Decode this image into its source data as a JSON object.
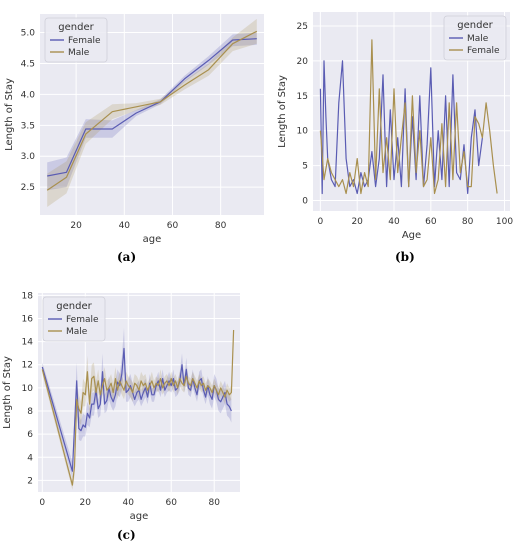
{
  "colors": {
    "background": "#eaeaf2",
    "grid": "#ffffff",
    "female": "#5a5cb3",
    "male": "#a9904f",
    "text": "#333333"
  },
  "chart_data": [
    {
      "panel": "(a)",
      "type": "line",
      "xlabel": "age",
      "ylabel": "Length of Stay",
      "xlim": [
        5,
        98
      ],
      "ylim": [
        2.05,
        5.3
      ],
      "xticks": [
        20,
        40,
        60,
        80
      ],
      "yticks": [
        2.5,
        3.0,
        3.5,
        4.0,
        4.5,
        5.0
      ],
      "grid": true,
      "legend": {
        "title": "gender",
        "placement": "top-left"
      },
      "series": [
        {
          "name": "Female",
          "color": "#5a5cb3",
          "x": [
            8,
            16,
            24,
            35,
            45,
            55,
            65,
            75,
            85,
            95
          ],
          "y": [
            2.68,
            2.74,
            3.44,
            3.44,
            3.7,
            3.88,
            4.25,
            4.55,
            4.88,
            4.9
          ],
          "ci_low": [
            2.45,
            2.5,
            3.3,
            3.3,
            3.65,
            3.84,
            4.2,
            4.48,
            4.78,
            4.8
          ],
          "ci_high": [
            2.9,
            2.98,
            3.6,
            3.58,
            3.75,
            3.92,
            4.3,
            4.62,
            4.97,
            5.0
          ]
        },
        {
          "name": "Male",
          "color": "#a9904f",
          "x": [
            8,
            16,
            24,
            35,
            45,
            55,
            65,
            75,
            85,
            95
          ],
          "y": [
            2.45,
            2.66,
            3.36,
            3.72,
            3.8,
            3.88,
            4.15,
            4.4,
            4.82,
            5.02
          ],
          "ci_low": [
            2.18,
            2.4,
            3.2,
            3.6,
            3.74,
            3.83,
            4.08,
            4.3,
            4.7,
            4.82
          ],
          "ci_high": [
            2.72,
            2.92,
            3.55,
            3.84,
            3.86,
            3.93,
            4.22,
            4.5,
            4.92,
            5.22
          ]
        }
      ]
    },
    {
      "panel": "(b)",
      "type": "line",
      "xlabel": "Age",
      "ylabel": "Length of Stay",
      "xlim": [
        -4,
        103
      ],
      "ylim": [
        -1.5,
        27
      ],
      "xticks": [
        0,
        20,
        40,
        60,
        80,
        100
      ],
      "yticks": [
        0,
        5,
        10,
        15,
        20,
        25
      ],
      "grid": true,
      "legend": {
        "title": "gender",
        "placement": "top-right"
      },
      "series": [
        {
          "name": "Male",
          "color": "#5a5cb3",
          "x": [
            0,
            1,
            2,
            3,
            4,
            6,
            8,
            10,
            12,
            14,
            16,
            18,
            20,
            22,
            24,
            26,
            28,
            30,
            32,
            34,
            36,
            38,
            40,
            42,
            44,
            46,
            48,
            50,
            52,
            54,
            56,
            58,
            60,
            62,
            64,
            66,
            68,
            70,
            72,
            74,
            76,
            78,
            80,
            82,
            84,
            86,
            88
          ],
          "y": [
            16,
            1,
            20,
            12,
            6,
            3,
            2,
            14,
            20,
            6,
            2,
            3,
            1,
            4,
            2,
            3,
            7,
            2,
            6,
            18,
            2,
            13,
            3,
            9,
            2,
            16,
            2,
            12,
            3,
            15,
            2,
            8,
            19,
            2,
            10,
            3,
            15,
            2,
            18,
            4,
            3,
            8,
            1,
            9,
            13,
            5,
            9
          ]
        },
        {
          "name": "Female",
          "color": "#a9904f",
          "x": [
            0,
            2,
            4,
            6,
            8,
            10,
            12,
            14,
            16,
            18,
            20,
            22,
            24,
            26,
            28,
            30,
            32,
            34,
            36,
            38,
            40,
            42,
            44,
            46,
            48,
            50,
            52,
            54,
            56,
            58,
            60,
            62,
            64,
            66,
            68,
            70,
            72,
            74,
            76,
            78,
            80,
            82,
            84,
            86,
            88,
            90,
            92,
            94,
            96
          ],
          "y": [
            10,
            3,
            6,
            4,
            3,
            2,
            3,
            1,
            4,
            2,
            6,
            1,
            4,
            2,
            23,
            3,
            16,
            4,
            9,
            3,
            16,
            4,
            9,
            14,
            2,
            15,
            4,
            10,
            2,
            3,
            9,
            1,
            3,
            11,
            2,
            14,
            3,
            14,
            4,
            7,
            2,
            2,
            12,
            11,
            9,
            14,
            10,
            5,
            1
          ]
        }
      ]
    },
    {
      "panel": "(c)",
      "type": "line",
      "xlabel": "age",
      "ylabel": "Length of Stay",
      "xlim": [
        -2,
        92
      ],
      "ylim": [
        1,
        18.2
      ],
      "xticks": [
        0,
        20,
        40,
        60,
        80
      ],
      "yticks": [
        2,
        4,
        6,
        8,
        10,
        12,
        14,
        16,
        18
      ],
      "grid": true,
      "legend": {
        "title": "gender",
        "placement": "top-left"
      },
      "series": [
        {
          "name": "Female",
          "color": "#5a5cb3",
          "x": [
            0,
            14,
            16,
            17,
            18,
            19,
            20,
            21,
            22,
            23,
            24,
            25,
            26,
            27,
            28,
            29,
            30,
            31,
            32,
            33,
            34,
            35,
            36,
            37,
            38,
            39,
            40,
            41,
            42,
            43,
            44,
            45,
            46,
            47,
            48,
            49,
            50,
            51,
            52,
            53,
            54,
            55,
            56,
            57,
            58,
            59,
            60,
            61,
            62,
            63,
            64,
            65,
            66,
            67,
            68,
            69,
            70,
            71,
            72,
            73,
            74,
            75,
            76,
            77,
            78,
            79,
            80,
            81,
            82,
            83,
            84,
            85,
            86,
            87,
            88
          ],
          "y": [
            11.8,
            2.8,
            10.6,
            6.5,
            6.3,
            6.8,
            6.6,
            7.8,
            7.4,
            8.6,
            8.6,
            9.8,
            8.2,
            8.6,
            11.4,
            8.6,
            8.9,
            10.0,
            9.2,
            8.8,
            9.4,
            10.5,
            10.2,
            11.2,
            13.4,
            9.6,
            9.8,
            10.2,
            9.6,
            9.0,
            9.6,
            9.8,
            9.0,
            9.6,
            10.0,
            9.2,
            10.4,
            9.4,
            9.4,
            10.2,
            10.6,
            9.8,
            10.8,
            9.8,
            10.2,
            10.6,
            10.2,
            10.8,
            9.8,
            10.0,
            10.6,
            12.0,
            10.2,
            11.6,
            10.0,
            9.8,
            10.8,
            10.0,
            9.4,
            10.6,
            10.8,
            9.8,
            9.2,
            10.2,
            9.4,
            9.0,
            10.2,
            9.8,
            9.0,
            8.8,
            9.2,
            9.6,
            8.6,
            8.4,
            8.0
          ],
          "ci_low": [
            11.4,
            2.2,
            9.2,
            5.5,
            5.4,
            5.8,
            5.8,
            6.8,
            6.6,
            7.6,
            7.6,
            8.8,
            7.4,
            7.6,
            9.8,
            7.8,
            8.0,
            9.0,
            8.4,
            8.0,
            8.4,
            9.4,
            9.2,
            9.8,
            11.4,
            8.8,
            8.8,
            9.2,
            8.8,
            8.4,
            8.8,
            9.0,
            8.4,
            8.8,
            9.2,
            8.6,
            9.6,
            8.8,
            8.8,
            9.6,
            9.8,
            9.2,
            10.0,
            9.2,
            9.6,
            9.8,
            9.6,
            10.0,
            9.2,
            9.4,
            9.8,
            11.0,
            9.6,
            10.6,
            9.4,
            9.2,
            10.0,
            9.4,
            8.8,
            9.8,
            10.0,
            9.2,
            8.6,
            9.4,
            8.6,
            8.2,
            9.2,
            8.8,
            8.0,
            7.8,
            8.2,
            8.6,
            7.6,
            7.4,
            7.0
          ],
          "ci_high": [
            12.2,
            3.6,
            12.2,
            7.6,
            7.2,
            7.8,
            7.6,
            8.8,
            8.2,
            9.6,
            9.6,
            10.8,
            9.0,
            9.6,
            13.0,
            9.4,
            9.8,
            11.0,
            10.0,
            9.6,
            10.4,
            11.6,
            11.2,
            12.6,
            15.2,
            10.4,
            10.8,
            11.2,
            10.4,
            9.6,
            10.4,
            10.6,
            9.6,
            10.4,
            10.8,
            9.8,
            11.2,
            10.0,
            10.0,
            10.8,
            11.4,
            10.4,
            11.6,
            10.4,
            10.8,
            11.4,
            10.8,
            11.6,
            10.4,
            10.6,
            11.4,
            13.0,
            10.8,
            12.6,
            10.6,
            10.4,
            11.6,
            10.6,
            10.0,
            11.4,
            11.6,
            10.4,
            9.8,
            11.0,
            10.2,
            9.8,
            11.2,
            10.8,
            10.0,
            9.8,
            10.2,
            10.6,
            9.6,
            9.4,
            9.0
          ]
        },
        {
          "name": "Male",
          "color": "#a9904f",
          "x": [
            0,
            14,
            15,
            16,
            17,
            18,
            19,
            20,
            21,
            22,
            23,
            24,
            25,
            26,
            27,
            28,
            29,
            30,
            31,
            32,
            33,
            34,
            35,
            36,
            37,
            38,
            39,
            40,
            41,
            42,
            43,
            44,
            45,
            46,
            47,
            48,
            49,
            50,
            51,
            52,
            53,
            54,
            55,
            56,
            57,
            58,
            59,
            60,
            61,
            62,
            63,
            64,
            65,
            66,
            67,
            68,
            69,
            70,
            71,
            72,
            73,
            74,
            75,
            76,
            77,
            78,
            79,
            80,
            81,
            82,
            83,
            84,
            85,
            86,
            87,
            88,
            89
          ],
          "y": [
            11.6,
            1.6,
            3.2,
            9.0,
            8.2,
            7.8,
            9.6,
            9.4,
            11.4,
            8.6,
            10.8,
            11.0,
            9.6,
            10.6,
            9.4,
            10.2,
            10.8,
            9.8,
            10.0,
            10.4,
            9.6,
            10.8,
            9.8,
            10.6,
            10.2,
            9.8,
            10.6,
            10.2,
            10.0,
            9.6,
            10.4,
            10.2,
            9.8,
            10.6,
            10.2,
            10.4,
            9.8,
            10.2,
            10.6,
            10.0,
            10.4,
            10.2,
            10.8,
            10.0,
            10.4,
            10.6,
            10.2,
            10.8,
            10.2,
            10.6,
            10.0,
            10.8,
            10.4,
            10.2,
            11.0,
            10.4,
            10.2,
            10.8,
            10.4,
            10.0,
            10.6,
            10.2,
            10.4,
            9.8,
            10.2,
            10.0,
            9.6,
            10.2,
            9.8,
            9.4,
            10.0,
            9.6,
            9.2,
            9.8,
            9.4,
            9.6,
            15.0
          ],
          "ci_low": [
            11.2,
            1.2,
            2.4,
            7.6,
            7.0,
            6.8,
            8.4,
            8.4,
            10.0,
            7.6,
            9.6,
            9.8,
            8.6,
            9.6,
            8.6,
            9.4,
            9.8,
            9.0,
            9.2,
            9.6,
            8.8,
            9.8,
            9.0,
            9.8,
            9.4,
            9.0,
            9.8,
            9.4,
            9.2,
            8.8,
            9.6,
            9.4,
            9.0,
            9.8,
            9.4,
            9.6,
            9.2,
            9.6,
            9.8,
            9.4,
            9.8,
            9.6,
            10.0,
            9.4,
            9.8,
            10.0,
            9.6,
            10.2,
            9.6,
            10.0,
            9.4,
            10.2,
            9.8,
            9.6,
            10.2,
            9.8,
            9.6,
            10.2,
            9.8,
            9.4,
            10.0,
            9.6,
            9.8,
            9.2,
            9.6,
            9.4,
            9.0,
            9.6,
            9.2,
            8.8,
            9.4,
            9.0,
            8.6,
            9.2,
            8.8,
            9.0,
            14.8
          ],
          "ci_high": [
            12.0,
            2.0,
            4.0,
            10.4,
            9.4,
            8.8,
            10.8,
            10.4,
            12.8,
            9.6,
            12.0,
            12.2,
            10.6,
            11.6,
            10.2,
            11.0,
            11.8,
            10.6,
            10.8,
            11.2,
            10.4,
            11.8,
            10.6,
            11.4,
            11.0,
            10.6,
            11.4,
            11.0,
            10.8,
            10.4,
            11.2,
            11.0,
            10.6,
            11.4,
            11.0,
            11.2,
            10.4,
            10.8,
            11.4,
            10.6,
            11.0,
            10.8,
            11.6,
            10.6,
            11.0,
            11.2,
            10.8,
            11.4,
            10.8,
            11.2,
            10.6,
            11.4,
            11.0,
            10.8,
            11.8,
            11.0,
            10.8,
            11.4,
            11.0,
            10.6,
            11.2,
            10.8,
            11.0,
            10.4,
            10.8,
            10.6,
            10.2,
            10.8,
            10.4,
            10.0,
            10.6,
            10.2,
            9.8,
            10.4,
            10.0,
            10.2,
            15.2
          ]
        }
      ]
    }
  ]
}
